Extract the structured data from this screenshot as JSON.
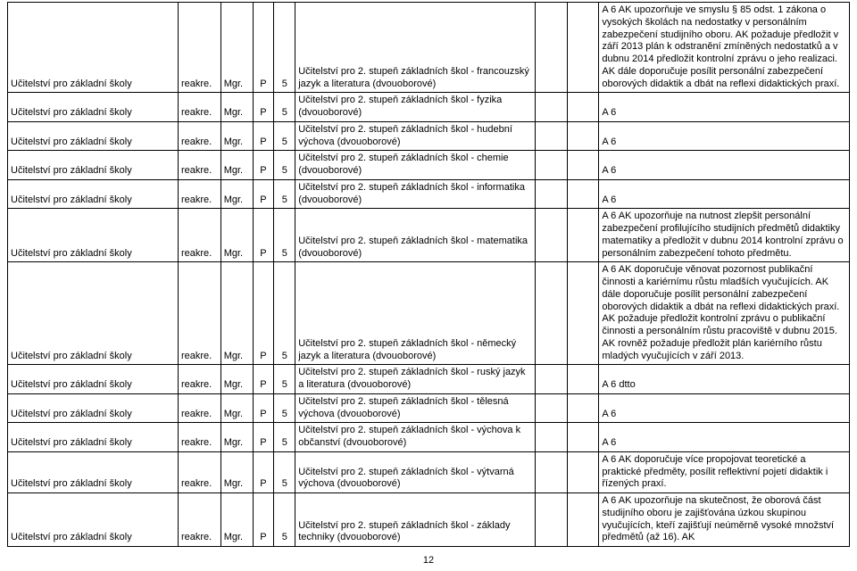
{
  "col_widths": [
    "160px",
    "40px",
    "30px",
    "20px",
    "20px",
    "225px",
    "30px",
    "30px",
    "235px"
  ],
  "page_number": "12",
  "rows": [
    {
      "c0": "Učitelství pro základní školy",
      "c1": "reakre.",
      "c2": "Mgr.",
      "c3": "P",
      "c4": "5",
      "c5": "Učitelství pro 2. stupeň základních škol - francouzský jazyk a literatura (dvouoborové)",
      "c6": "",
      "c7": "",
      "c8": "A 6  AK upozorňuje ve smyslu § 85 odst. 1 zákona o vysokých školách na nedostatky v personálním zabezpečení studijního oboru. AK požaduje předložit v září 2013 plán k odstranění zmíněných nedostatků a v dubnu 2014 předložit kontrolní zprávu o jeho realizaci. AK dále doporučuje posílit personální zabezpečení oborových didaktik a dbát na reflexi didaktických praxí."
    },
    {
      "c0": "Učitelství pro základní školy",
      "c1": "reakre.",
      "c2": "Mgr.",
      "c3": "P",
      "c4": "5",
      "c5": "Učitelství pro 2. stupeň základních škol - fyzika (dvouoborové)",
      "c6": "",
      "c7": "",
      "c8": "A 6"
    },
    {
      "c0": "Učitelství pro základní školy",
      "c1": "reakre.",
      "c2": "Mgr.",
      "c3": "P",
      "c4": "5",
      "c5": "Učitelství pro 2. stupeň základních škol - hudební výchova (dvouoborové)",
      "c6": "",
      "c7": "",
      "c8": "A 6"
    },
    {
      "c0": "Učitelství pro základní školy",
      "c1": "reakre.",
      "c2": "Mgr.",
      "c3": "P",
      "c4": "5",
      "c5": "Učitelství pro 2. stupeň základních škol - chemie (dvouoborové)",
      "c6": "",
      "c7": "",
      "c8": "A 6"
    },
    {
      "c0": "Učitelství pro základní školy",
      "c1": "reakre.",
      "c2": "Mgr.",
      "c3": "P",
      "c4": "5",
      "c5": "Učitelství pro 2. stupeň základních škol - informatika (dvouoborové)",
      "c6": "",
      "c7": "",
      "c8": "A 6"
    },
    {
      "c0": "Učitelství pro základní školy",
      "c1": "reakre.",
      "c2": "Mgr.",
      "c3": "P",
      "c4": "5",
      "c5": "Učitelství pro 2. stupeň základních škol - matematika (dvouoborové)",
      "c6": "",
      "c7": "",
      "c8": "A 6  AK upozorňuje na nutnost zlepšit personální zabezpečení profilujícího studijních předmětů didaktiky matematiky a předložit v dubnu 2014 kontrolní zprávu o personálním zabezpečení tohoto předmětu."
    },
    {
      "c0": "Učitelství pro základní školy",
      "c1": "reakre.",
      "c2": "Mgr.",
      "c3": "P",
      "c4": "5",
      "c5": "Učitelství pro 2. stupeň základních škol - německý jazyk a literatura (dvouoborové)",
      "c6": "",
      "c7": "",
      "c8": "A 6  AK doporučuje věnovat pozornost publikační činnosti a kariérnímu růstu mladších vyučujících. AK dále doporučuje posílit personální zabezpečení oborových didaktik a dbát na reflexi didaktických praxí. AK požaduje předložit kontrolní zprávu o publikační činnosti a personálním růstu pracoviště v dubnu 2015. AK rovněž požaduje předložit plán kariérního růstu mladých vyučujících v září 2013."
    },
    {
      "c0": "Učitelství pro základní školy",
      "c1": "reakre.",
      "c2": "Mgr.",
      "c3": "P",
      "c4": "5",
      "c5": "Učitelství pro 2. stupeň základních škol - ruský jazyk a literatura (dvouoborové)",
      "c6": "",
      "c7": "",
      "c8": "A 6  dtto"
    },
    {
      "c0": "Učitelství pro základní školy",
      "c1": "reakre.",
      "c2": "Mgr.",
      "c3": "P",
      "c4": "5",
      "c5": "Učitelství pro 2. stupeň základních škol - tělesná výchova (dvouoborové)",
      "c6": "",
      "c7": "",
      "c8": "A 6"
    },
    {
      "c0": "Učitelství pro základní školy",
      "c1": "reakre.",
      "c2": "Mgr.",
      "c3": "P",
      "c4": "5",
      "c5": "Učitelství pro 2. stupeň základních škol - výchova k občanství (dvouoborové)",
      "c6": "",
      "c7": "",
      "c8": "A 6"
    },
    {
      "c0": "Učitelství pro základní školy",
      "c1": "reakre.",
      "c2": "Mgr.",
      "c3": "P",
      "c4": "5",
      "c5": "Učitelství pro 2. stupeň základních škol - výtvarná výchova (dvouoborové)",
      "c6": "",
      "c7": "",
      "c8": "A 6  AK doporučuje více propojovat teoretické a praktické předměty, posílit reflektivní pojetí didaktik i řízených praxí."
    },
    {
      "c0": "Učitelství pro základní školy",
      "c1": "reakre.",
      "c2": "Mgr.",
      "c3": "P",
      "c4": "5",
      "c5": "Učitelství pro 2. stupeň základních škol - základy techniky (dvouoborové)",
      "c6": "",
      "c7": "",
      "c8": "A 6  AK upozorňuje na skutečnost, že oborová část studijního oboru je zajišťována úzkou skupinou vyučujících, kteří zajišťují neúměrně vysoké množství předmětů (až 16). AK"
    }
  ]
}
